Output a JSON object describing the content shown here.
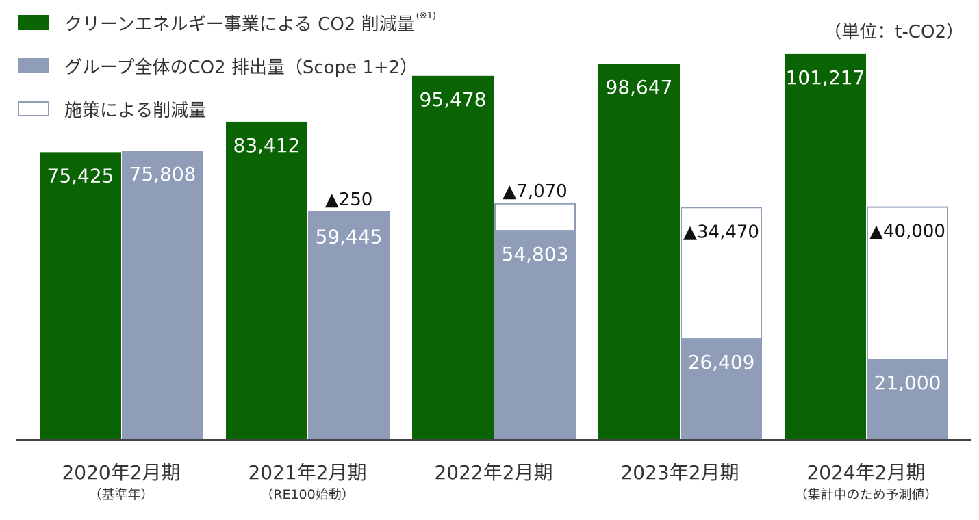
{
  "legend": {
    "green_label": "クリーンエネルギー事業による CO2 削減量",
    "green_note": "(※1)",
    "gray_label": "グループ全体のCO2 排出量（Scope 1+2）",
    "outline_label": "施策による削減量"
  },
  "unit_label": "（単位：t-CO2）",
  "colors": {
    "green": "#0a6404",
    "gray": "#8f9db8",
    "outline": "#8f9db8",
    "axis": "#444444",
    "text": "#333333"
  },
  "chart_data": {
    "type": "bar",
    "categories": [
      "2020年2月期",
      "2021年2月期",
      "2022年2月期",
      "2023年2月期",
      "2024年2月期"
    ],
    "category_sublabels": [
      "（基準年）",
      "（RE100始動）",
      "",
      "",
      "（集計中のため予測値）"
    ],
    "series": [
      {
        "name": "クリーンエネルギー事業による CO2 削減量",
        "values": [
          75425,
          83412,
          95478,
          98647,
          101217
        ],
        "labels": [
          "75,425",
          "83,412",
          "95,478",
          "98,647",
          "101,217"
        ]
      },
      {
        "name": "グループ全体のCO2 排出量（Scope 1+2）",
        "values": [
          75808,
          59445,
          54803,
          26409,
          21000
        ],
        "labels": [
          "75,808",
          "59,445",
          "54,803",
          "26,409",
          "21,000"
        ]
      },
      {
        "name": "施策による削減量",
        "values": [
          0,
          250,
          7070,
          34470,
          40000
        ],
        "labels": [
          "",
          "▲250",
          "▲7,070",
          "▲34,470",
          "▲40,000"
        ],
        "stacked_on": 1
      }
    ],
    "ylim": [
      0,
      110000
    ]
  }
}
